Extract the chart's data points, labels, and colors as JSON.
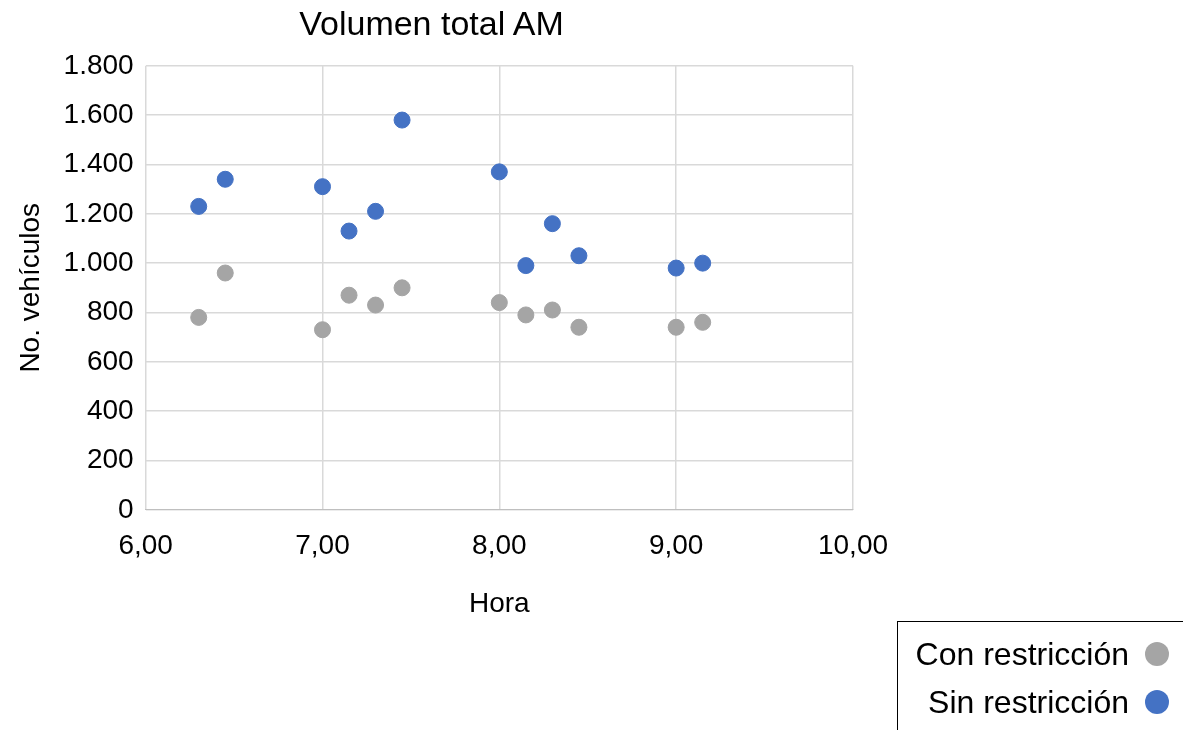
{
  "chart_data": {
    "type": "scatter",
    "title": "Volumen total AM",
    "xlabel": "Hora",
    "ylabel": "No. vehículos",
    "x": [
      6.3,
      6.45,
      7.0,
      7.15,
      7.3,
      7.45,
      8.0,
      8.15,
      8.3,
      8.45,
      9.0,
      9.15
    ],
    "series": [
      {
        "name": "Con restricción",
        "color": "#a5a5a5",
        "values": [
          780,
          960,
          730,
          870,
          830,
          900,
          840,
          790,
          810,
          740,
          740,
          760
        ]
      },
      {
        "name": "Sin restricción",
        "color": "#4472c4",
        "values": [
          1230,
          1340,
          1310,
          1130,
          1210,
          1580,
          1370,
          990,
          1160,
          1030,
          980,
          1000
        ]
      }
    ],
    "xlim": [
      6,
      10
    ],
    "xticks": [
      {
        "value": 6,
        "label": "6,00"
      },
      {
        "value": 7,
        "label": "7,00"
      },
      {
        "value": 8,
        "label": "8,00"
      },
      {
        "value": 9,
        "label": "9,00"
      },
      {
        "value": 10,
        "label": "10,00"
      }
    ],
    "ylim": [
      0,
      1800
    ],
    "yticks": [
      0,
      200,
      400,
      600,
      800,
      {
        "value": 1000,
        "label": "1.000"
      },
      {
        "value": 1200,
        "label": "1.200"
      },
      {
        "value": 1400,
        "label": "1.400"
      },
      {
        "value": 1600,
        "label": "1.600"
      },
      {
        "value": 1800,
        "label": "1.800"
      }
    ],
    "grid": true,
    "legend": "bottom right",
    "marker": "circle"
  }
}
